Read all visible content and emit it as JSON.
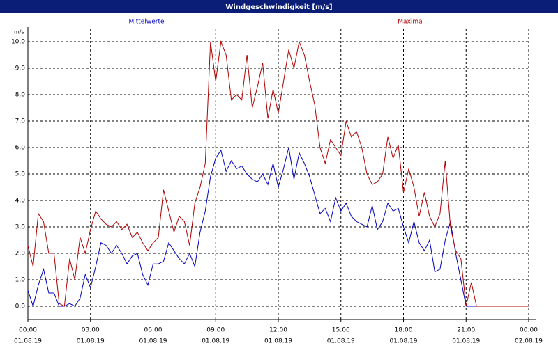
{
  "chart_data": {
    "type": "line",
    "title": "Windgeschwindigkeit [m/s]",
    "ylabel": "m/s",
    "x": [
      0,
      0.25,
      0.5,
      0.75,
      1,
      1.25,
      1.5,
      1.75,
      2,
      2.25,
      2.5,
      2.75,
      3,
      3.25,
      3.5,
      3.75,
      4,
      4.25,
      4.5,
      4.75,
      5,
      5.25,
      5.5,
      5.75,
      6,
      6.25,
      6.5,
      6.75,
      7,
      7.25,
      7.5,
      7.75,
      8,
      8.25,
      8.5,
      8.75,
      9,
      9.25,
      9.5,
      9.75,
      10,
      10.25,
      10.5,
      10.75,
      11,
      11.25,
      11.5,
      11.75,
      12,
      12.25,
      12.5,
      12.75,
      13,
      13.25,
      13.5,
      13.75,
      14,
      14.25,
      14.5,
      14.75,
      15,
      15.25,
      15.5,
      15.75,
      16,
      16.25,
      16.5,
      16.75,
      17,
      17.25,
      17.5,
      17.75,
      18,
      18.25,
      18.5,
      18.75,
      19,
      19.25,
      19.5,
      19.75,
      20,
      20.25,
      20.5,
      20.75,
      21,
      21.25,
      21.5,
      24
    ],
    "series": [
      {
        "name": "Mittelwerte",
        "color": "#0000c0",
        "values": [
          0.6,
          0.0,
          0.8,
          1.4,
          0.5,
          0.5,
          0.0,
          0.0,
          0.1,
          0.0,
          0.3,
          1.2,
          0.7,
          1.5,
          2.4,
          2.3,
          2.0,
          2.3,
          2.0,
          1.6,
          1.9,
          2.0,
          1.2,
          0.8,
          1.6,
          1.6,
          1.7,
          2.4,
          2.1,
          1.8,
          1.6,
          2.0,
          1.5,
          2.8,
          3.6,
          4.9,
          5.6,
          5.9,
          5.1,
          5.5,
          5.2,
          5.3,
          5.0,
          4.8,
          4.7,
          5.0,
          4.6,
          5.4,
          4.5,
          5.2,
          6.0,
          4.8,
          5.8,
          5.4,
          4.9,
          4.2,
          3.5,
          3.7,
          3.2,
          4.1,
          3.6,
          3.9,
          3.4,
          3.2,
          3.1,
          3.0,
          3.8,
          2.9,
          3.2,
          3.9,
          3.6,
          3.7,
          3.0,
          2.4,
          3.2,
          2.4,
          2.1,
          2.5,
          1.3,
          1.4,
          2.5,
          3.2,
          2.0,
          1.0,
          0.0,
          0.0,
          0.0,
          0.0
        ]
      },
      {
        "name": "Maxima",
        "color": "#b00000",
        "values": [
          2.3,
          1.5,
          3.5,
          3.2,
          2.0,
          2.0,
          0.1,
          0.0,
          1.8,
          1.0,
          2.6,
          2.0,
          2.9,
          3.6,
          3.3,
          3.1,
          3.0,
          3.2,
          2.9,
          3.1,
          2.6,
          2.8,
          2.4,
          2.1,
          2.4,
          2.6,
          4.4,
          3.6,
          2.8,
          3.4,
          3.2,
          2.3,
          3.9,
          4.5,
          5.4,
          10.0,
          8.5,
          10.0,
          9.5,
          7.8,
          8.0,
          7.8,
          9.5,
          7.5,
          8.3,
          9.2,
          7.1,
          8.2,
          7.3,
          8.5,
          9.7,
          9.0,
          10.0,
          9.5,
          8.5,
          7.6,
          6.0,
          5.4,
          6.3,
          6.0,
          5.7,
          7.0,
          6.4,
          6.6,
          6.0,
          5.0,
          4.6,
          4.7,
          5.0,
          6.4,
          5.6,
          6.1,
          4.3,
          5.2,
          4.5,
          3.4,
          4.3,
          3.4,
          3.0,
          3.5,
          5.5,
          3.0,
          2.1,
          1.8,
          0.0,
          0.9,
          0.0,
          0.0
        ]
      }
    ],
    "xlim": [
      0,
      24
    ],
    "xticks": [
      {
        "value": 0,
        "label": "00:00"
      },
      {
        "value": 3,
        "label": "03:00"
      },
      {
        "value": 6,
        "label": "06:00"
      },
      {
        "value": 9,
        "label": "09:00"
      },
      {
        "value": 12,
        "label": "12:00"
      },
      {
        "value": 15,
        "label": "15:00"
      },
      {
        "value": 18,
        "label": "18:00"
      },
      {
        "value": 21,
        "label": "21:00"
      },
      {
        "value": 24,
        "label": "00:00"
      }
    ],
    "xtick_dates": [
      "01.08.19",
      "01.08.19",
      "01.08.19",
      "01.08.19",
      "01.08.19",
      "01.08.19",
      "01.08.19",
      "01.08.19",
      "02.08.19"
    ],
    "ylim": [
      -0.5,
      10.5
    ],
    "yticks": [
      {
        "value": 0,
        "label": "0,0"
      },
      {
        "value": 1,
        "label": "1,0"
      },
      {
        "value": 2,
        "label": "2,0"
      },
      {
        "value": 3,
        "label": "3,0"
      },
      {
        "value": 4,
        "label": "4,0"
      },
      {
        "value": 5,
        "label": "5,0"
      },
      {
        "value": 6,
        "label": "6,0"
      },
      {
        "value": 7,
        "label": "7,0"
      },
      {
        "value": 8,
        "label": "8,0"
      },
      {
        "value": 9,
        "label": "9,0"
      },
      {
        "value": 10,
        "label": "10,0"
      }
    ],
    "grid": true
  }
}
